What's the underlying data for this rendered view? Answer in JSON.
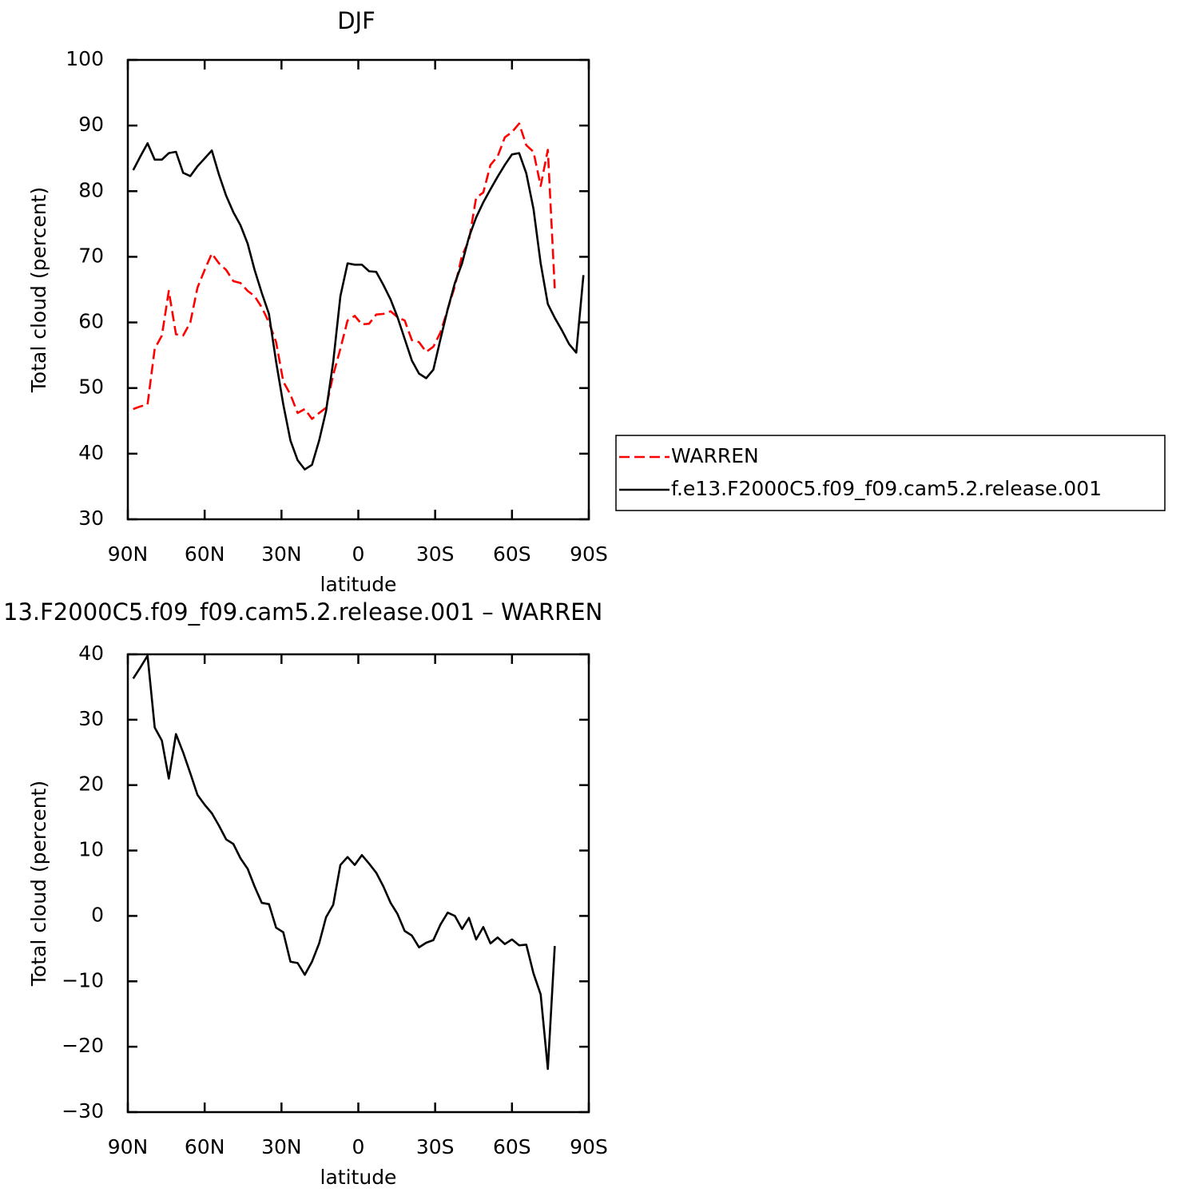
{
  "chart_data": [
    {
      "type": "line",
      "title": "DJF",
      "xlabel": "latitude",
      "ylabel": "Total cloud (percent)",
      "xlim": [
        90,
        -90
      ],
      "xticks": [
        {
          "value": 90,
          "label": "90N"
        },
        {
          "value": 60,
          "label": "60N"
        },
        {
          "value": 30,
          "label": "30N"
        },
        0,
        {
          "value": -30,
          "label": "30S"
        },
        {
          "value": -60,
          "label": "60S"
        },
        {
          "value": -90,
          "label": "90S"
        }
      ],
      "ylim": [
        30,
        100
      ],
      "yticks": [
        30,
        40,
        50,
        60,
        70,
        80,
        90,
        100
      ],
      "x": [
        87.9,
        85.1,
        82.3,
        79.5,
        76.7,
        74.0,
        71.2,
        68.4,
        65.6,
        62.8,
        60.0,
        57.2,
        54.4,
        51.6,
        48.8,
        46.0,
        43.2,
        40.5,
        37.7,
        34.9,
        32.1,
        29.3,
        26.5,
        23.7,
        20.9,
        18.1,
        15.3,
        12.6,
        9.8,
        7.0,
        4.2,
        1.4,
        -1.4,
        -4.2,
        -7.0,
        -9.8,
        -12.6,
        -15.3,
        -18.1,
        -20.9,
        -23.7,
        -26.5,
        -29.3,
        -32.1,
        -34.9,
        -37.7,
        -40.5,
        -43.2,
        -46.0,
        -48.8,
        -51.6,
        -54.4,
        -57.2,
        -60.0,
        -62.8,
        -65.6,
        -68.4,
        -71.2,
        -74.0,
        -76.7,
        -79.5,
        -82.3,
        -85.1,
        -87.9
      ],
      "legend": "right",
      "series": [
        {
          "name": "WARREN",
          "color": "#ff0000",
          "dash": true,
          "values": [
            46.8,
            47.2,
            47.5,
            56,
            58,
            64.8,
            58.2,
            58,
            60,
            65.3,
            68,
            70.5,
            69,
            68,
            66.3,
            66,
            64.8,
            64,
            62.3,
            60,
            57,
            51,
            49,
            46.2,
            46.8,
            45.3,
            46.2,
            47,
            52,
            56,
            60.3,
            61,
            59.7,
            59.8,
            61.2,
            61.3,
            61.7,
            60.8,
            60.3,
            57.3,
            57,
            55.5,
            56.3,
            58.5,
            62,
            65.5,
            70.2,
            72.5,
            79,
            79.8,
            84,
            85.3,
            88.2,
            89,
            90.3,
            87,
            86,
            80.8,
            86.3,
            65.2,
            null,
            null,
            null,
            null
          ]
        },
        {
          "name": "f.e13.F2000C5.f09_f09.cam5.2.release.001",
          "color": "#000000",
          "dash": false,
          "values": [
            83.2,
            85.3,
            87.3,
            84.8,
            84.8,
            85.8,
            86.0,
            82.8,
            82.3,
            83.8,
            85.0,
            86.2,
            82.5,
            79.3,
            76.8,
            74.8,
            72.0,
            68.0,
            64.5,
            61.3,
            54.0,
            47.5,
            42.0,
            39.0,
            37.6,
            38.3,
            42.0,
            46.5,
            54.0,
            64.0,
            69.0,
            68.8,
            68.8,
            67.8,
            67.7,
            65.7,
            63.5,
            60.8,
            57.5,
            54.2,
            52.2,
            51.5,
            52.8,
            57.5,
            62.0,
            66.0,
            69.0,
            73.0,
            76.0,
            78.3,
            80.3,
            82.2,
            84.0,
            85.6,
            85.8,
            82.7,
            77.3,
            69.0,
            62.8,
            60.7,
            58.8,
            56.7,
            55.4,
            67.2
          ]
        }
      ]
    },
    {
      "type": "line",
      "title": "13.F2000C5.f09_f09.cam5.2.release.001 – WARREN",
      "xlabel": "latitude",
      "ylabel": "Total cloud (percent)",
      "xlim": [
        90,
        -90
      ],
      "xticks": [
        {
          "value": 90,
          "label": "90N"
        },
        {
          "value": 60,
          "label": "60N"
        },
        {
          "value": 30,
          "label": "30N"
        },
        0,
        {
          "value": -30,
          "label": "30S"
        },
        {
          "value": -60,
          "label": "60S"
        },
        {
          "value": -90,
          "label": "90S"
        }
      ],
      "ylim": [
        -30,
        40
      ],
      "yticks": [
        {
          "value": -30,
          "label": "−30"
        },
        {
          "value": -20,
          "label": "−20"
        },
        {
          "value": -10,
          "label": "−10"
        },
        0,
        10,
        20,
        30,
        40
      ],
      "x": [
        87.9,
        85.1,
        82.3,
        79.5,
        76.7,
        74.0,
        71.2,
        68.4,
        65.6,
        62.8,
        60.0,
        57.2,
        54.4,
        51.6,
        48.8,
        46.0,
        43.2,
        40.5,
        37.7,
        34.9,
        32.1,
        29.3,
        26.5,
        23.7,
        20.9,
        18.1,
        15.3,
        12.6,
        9.8,
        7.0,
        4.2,
        1.4,
        -1.4,
        -4.2,
        -7.0,
        -9.8,
        -12.6,
        -15.3,
        -18.1,
        -20.9,
        -23.7,
        -26.5,
        -29.3,
        -32.1,
        -34.9,
        -37.7,
        -40.5,
        -43.2,
        -46.0,
        -48.8,
        -51.6,
        -54.4,
        -57.2,
        -60.0,
        -62.8,
        -65.6,
        -68.4,
        -71.2,
        -74.0,
        -76.7,
        -79.5,
        -82.3,
        -85.1,
        -87.9
      ],
      "series": [
        {
          "color": "#000000",
          "dash": false,
          "values": [
            36.3,
            38,
            39.8,
            28.8,
            26.8,
            21,
            27.8,
            25,
            21.8,
            18.5,
            17,
            15.7,
            13.8,
            11.7,
            11,
            8.8,
            7.2,
            4.5,
            2,
            1.8,
            -1.8,
            -2.5,
            -7,
            -7.2,
            -9,
            -7,
            -4.2,
            -0.2,
            1.7,
            7.8,
            9,
            7.8,
            9.3,
            8,
            6.6,
            4.5,
            2,
            0.3,
            -2.3,
            -3,
            -4.8,
            -4.1,
            -3.7,
            -1.3,
            0.5,
            0,
            -2,
            -0.3,
            -3.6,
            -1.7,
            -4.2,
            -3.3,
            -4.3,
            -3.6,
            -4.5,
            -4.4,
            -8.8,
            -12,
            -23.4,
            -4.6,
            null,
            null,
            null,
            null
          ]
        }
      ]
    }
  ]
}
